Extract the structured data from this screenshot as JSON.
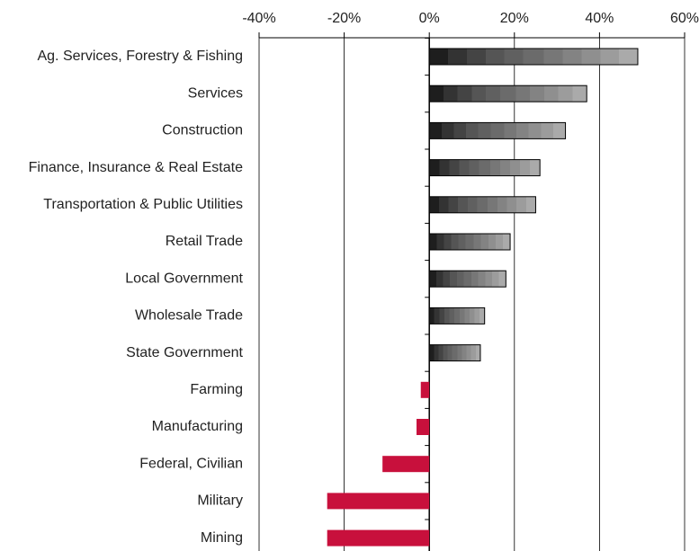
{
  "chart_data": {
    "type": "barh",
    "categories": [
      "Ag. Services, Forestry & Fishing",
      "Services",
      "Construction",
      "Finance, Insurance & Real Estate",
      "Transportation & Public Utilities",
      "Retail Trade",
      "Local Government",
      "Wholesale Trade",
      "State Government",
      "Farming",
      "Manufacturing",
      "Federal, Civilian",
      "Military",
      "Mining"
    ],
    "values": [
      49,
      37,
      32,
      26,
      25,
      19,
      18,
      13,
      12,
      -2,
      -3,
      -11,
      -24,
      -24
    ],
    "positive_color": "#666666",
    "negative_color": "#c8103c",
    "xlim": [
      -40,
      60
    ],
    "xticks": [
      {
        "value": -40,
        "label": "-40%"
      },
      {
        "value": -20,
        "label": "-20%"
      },
      {
        "value": 0,
        "label": "0%"
      },
      {
        "value": 20,
        "label": "20%"
      },
      {
        "value": 40,
        "label": "40%"
      },
      {
        "value": 60,
        "label": "60%"
      }
    ],
    "grid": true
  }
}
